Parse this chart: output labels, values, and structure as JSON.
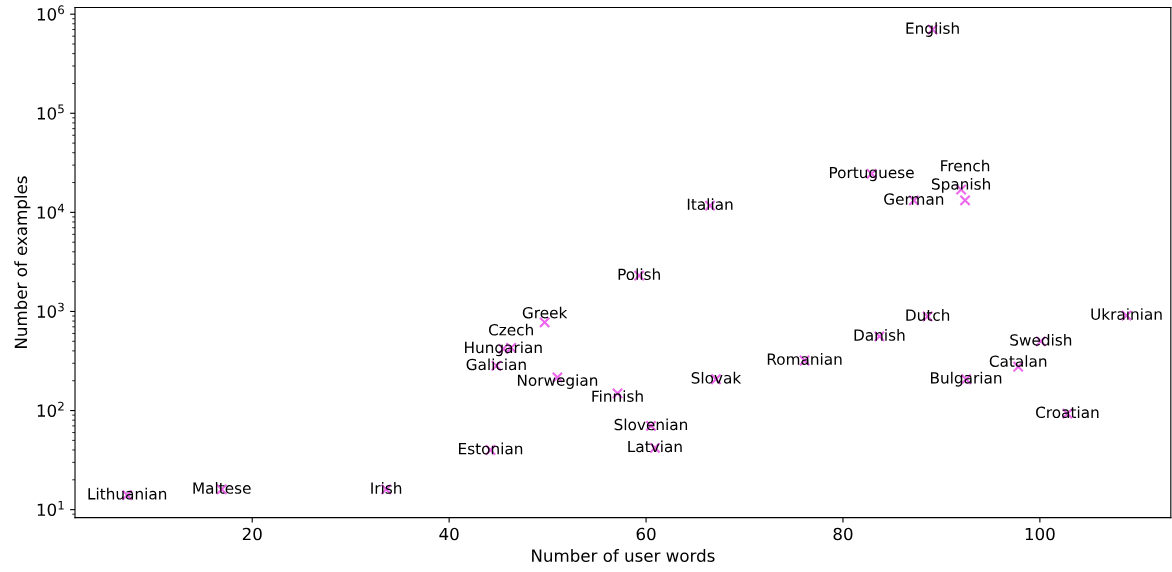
{
  "chart_data": {
    "type": "scatter",
    "xlabel": "Number of user words",
    "ylabel": "Number of examples",
    "log": "y",
    "marker": "cross",
    "grid": false,
    "legend": false,
    "x": [
      7.3,
      16.9,
      33.6,
      44.2,
      44.8,
      45.5,
      46.3,
      49.7,
      51.0,
      57.1,
      59.3,
      60.5,
      60.9,
      66.5,
      67.1,
      76.1,
      83.7,
      88.6,
      89.1,
      82.9,
      87.2,
      92.0,
      92.4,
      92.5,
      97.8,
      100.1,
      102.8,
      108.8
    ],
    "series": [
      {
        "color": "#ee66ee",
        "values": [
          14,
          16,
          16,
          40,
          283,
          420,
          430,
          776,
          216,
          149,
          2300,
          70,
          42,
          11700,
          207,
          320,
          560,
          890,
          700000,
          24500,
          13200,
          17000,
          13200,
          207,
          277,
          500,
          93,
          910
        ]
      }
    ],
    "annotations": [
      {
        "text": "Lithuanian",
        "x": 7.3,
        "y": 14
      },
      {
        "text": "Maltese",
        "x": 16.9,
        "y": 16
      },
      {
        "text": "Irish",
        "x": 33.6,
        "y": 16
      },
      {
        "text": "Estonian",
        "x": 44.2,
        "y": 40
      },
      {
        "text": "Galician",
        "x": 44.8,
        "y": 283
      },
      {
        "text": "Hungarian",
        "x": 45.5,
        "y": 420
      },
      {
        "text": "Czech",
        "x": 46.3,
        "y": 430
      },
      {
        "text": "Greek",
        "x": 49.7,
        "y": 776
      },
      {
        "text": "Norwegian",
        "x": 51.0,
        "y": 216
      },
      {
        "text": "Finnish",
        "x": 57.1,
        "y": 149
      },
      {
        "text": "Polish",
        "x": 59.3,
        "y": 2300
      },
      {
        "text": "Slovenian",
        "x": 60.5,
        "y": 70
      },
      {
        "text": "Latvian",
        "x": 60.9,
        "y": 42
      },
      {
        "text": "Italian",
        "x": 66.5,
        "y": 11700
      },
      {
        "text": "Slovak",
        "x": 67.1,
        "y": 207
      },
      {
        "text": "Romanian",
        "x": 76.1,
        "y": 320
      },
      {
        "text": "Danish",
        "x": 83.7,
        "y": 560
      },
      {
        "text": "Dutch",
        "x": 88.6,
        "y": 890
      },
      {
        "text": "English",
        "x": 89.1,
        "y": 700000
      },
      {
        "text": "Portuguese",
        "x": 82.9,
        "y": 24500
      },
      {
        "text": "German",
        "x": 87.2,
        "y": 13200
      },
      {
        "text": "Spanish",
        "x": 92.0,
        "y": 17000
      },
      {
        "text": "French",
        "x": 92.4,
        "y": 13200
      },
      {
        "text": "Bulgarian",
        "x": 92.5,
        "y": 207
      },
      {
        "text": "Catalan",
        "x": 97.8,
        "y": 277
      },
      {
        "text": "Swedish",
        "x": 100.1,
        "y": 500
      },
      {
        "text": "Croatian",
        "x": 102.8,
        "y": 93
      },
      {
        "text": "Ukrainian",
        "x": 108.8,
        "y": 910
      }
    ],
    "xlim": [
      2.0,
      113.3
    ],
    "ylim": [
      8.3,
      1170000
    ],
    "xticks": [
      20,
      40,
      60,
      80,
      100
    ],
    "yticks": [
      {
        "value": 10,
        "label": "10$^{1}$"
      },
      {
        "value": 100,
        "label": "10$^{2}$"
      },
      {
        "value": 1000,
        "label": "10$^{3}$"
      },
      {
        "value": 10000,
        "label": "10$^{4}$"
      },
      {
        "value": 100000,
        "label": "10$^{5}$"
      },
      {
        "value": 1000000,
        "label": "10$^{6}$"
      }
    ]
  }
}
